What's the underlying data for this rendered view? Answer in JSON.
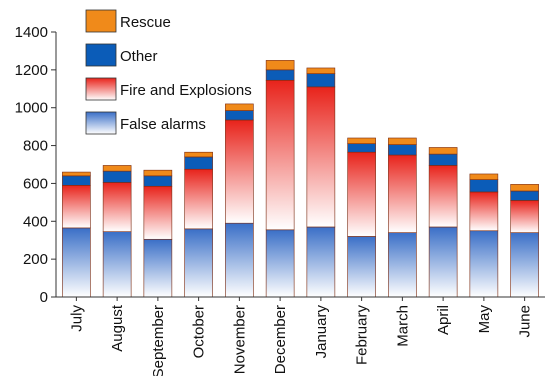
{
  "chart_data": {
    "type": "bar",
    "stacked": true,
    "title": "",
    "xlabel": "",
    "ylabel": "",
    "ylim": [
      0,
      1400
    ],
    "yticks": [
      0,
      200,
      400,
      600,
      800,
      1000,
      1200,
      1400
    ],
    "grid": false,
    "legend_position": "top-left",
    "categories": [
      "July",
      "August",
      "September",
      "October",
      "November",
      "December",
      "January",
      "February",
      "March",
      "April",
      "May",
      "June"
    ],
    "series": [
      {
        "name": "False alarms",
        "color_top": "#3a6fc7",
        "color_bottom": "#ffffff",
        "values": [
          365,
          345,
          305,
          360,
          390,
          355,
          370,
          320,
          340,
          370,
          350,
          340
        ]
      },
      {
        "name": "Fire and Explosions",
        "color_top": "#e8231b",
        "color_bottom": "#ffffff",
        "values": [
          225,
          260,
          280,
          315,
          545,
          790,
          740,
          445,
          410,
          325,
          205,
          170
        ]
      },
      {
        "name": "Other",
        "color_top": "#0b5cb8",
        "color_bottom": "#0b5cb8",
        "values": [
          50,
          60,
          55,
          65,
          50,
          55,
          70,
          45,
          55,
          60,
          65,
          50
        ]
      },
      {
        "name": "Rescue",
        "color_top": "#f08a1a",
        "color_bottom": "#f08a1a",
        "values": [
          20,
          30,
          30,
          25,
          35,
          50,
          30,
          30,
          35,
          35,
          30,
          35
        ]
      }
    ]
  }
}
